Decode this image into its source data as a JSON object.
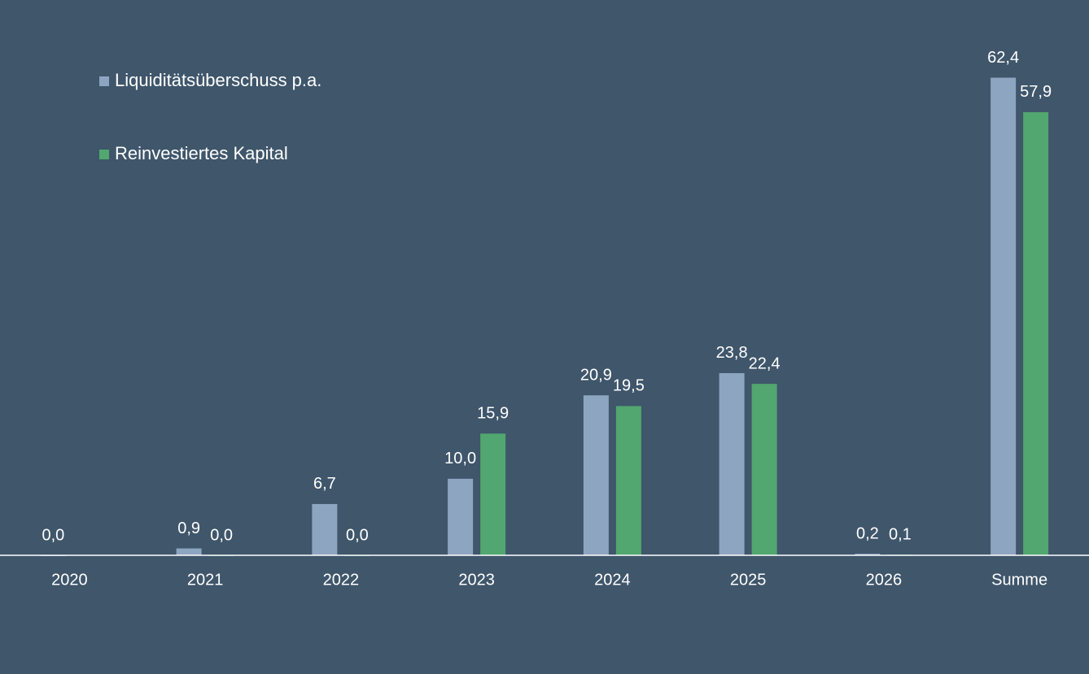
{
  "chart_data": {
    "type": "bar",
    "categories": [
      "2020",
      "2021",
      "2022",
      "2023",
      "2024",
      "2025",
      "2026",
      "Summe"
    ],
    "series": [
      {
        "name": "Liquiditätsüberschuss p.a.",
        "color": "#8ea5c2",
        "values": [
          0,
          0.9,
          6.7,
          10.0,
          20.9,
          23.8,
          0.2,
          62.4
        ],
        "value_labels": [
          "0,0",
          "0,9",
          "6,7",
          "10,0",
          "20,9",
          "23,8",
          "0,2",
          "62,4"
        ]
      },
      {
        "name": "Reinvestiertes Kapital",
        "color": "#52a66f",
        "values": [
          null,
          0,
          0,
          15.9,
          19.5,
          22.4,
          0.1,
          57.9
        ],
        "value_labels": [
          null,
          "0,0",
          "0,0",
          "15,9",
          "19,5",
          "22,4",
          "0,1",
          "57,9"
        ]
      }
    ],
    "ylim": [
      0,
      70
    ],
    "legend": "top-left"
  }
}
